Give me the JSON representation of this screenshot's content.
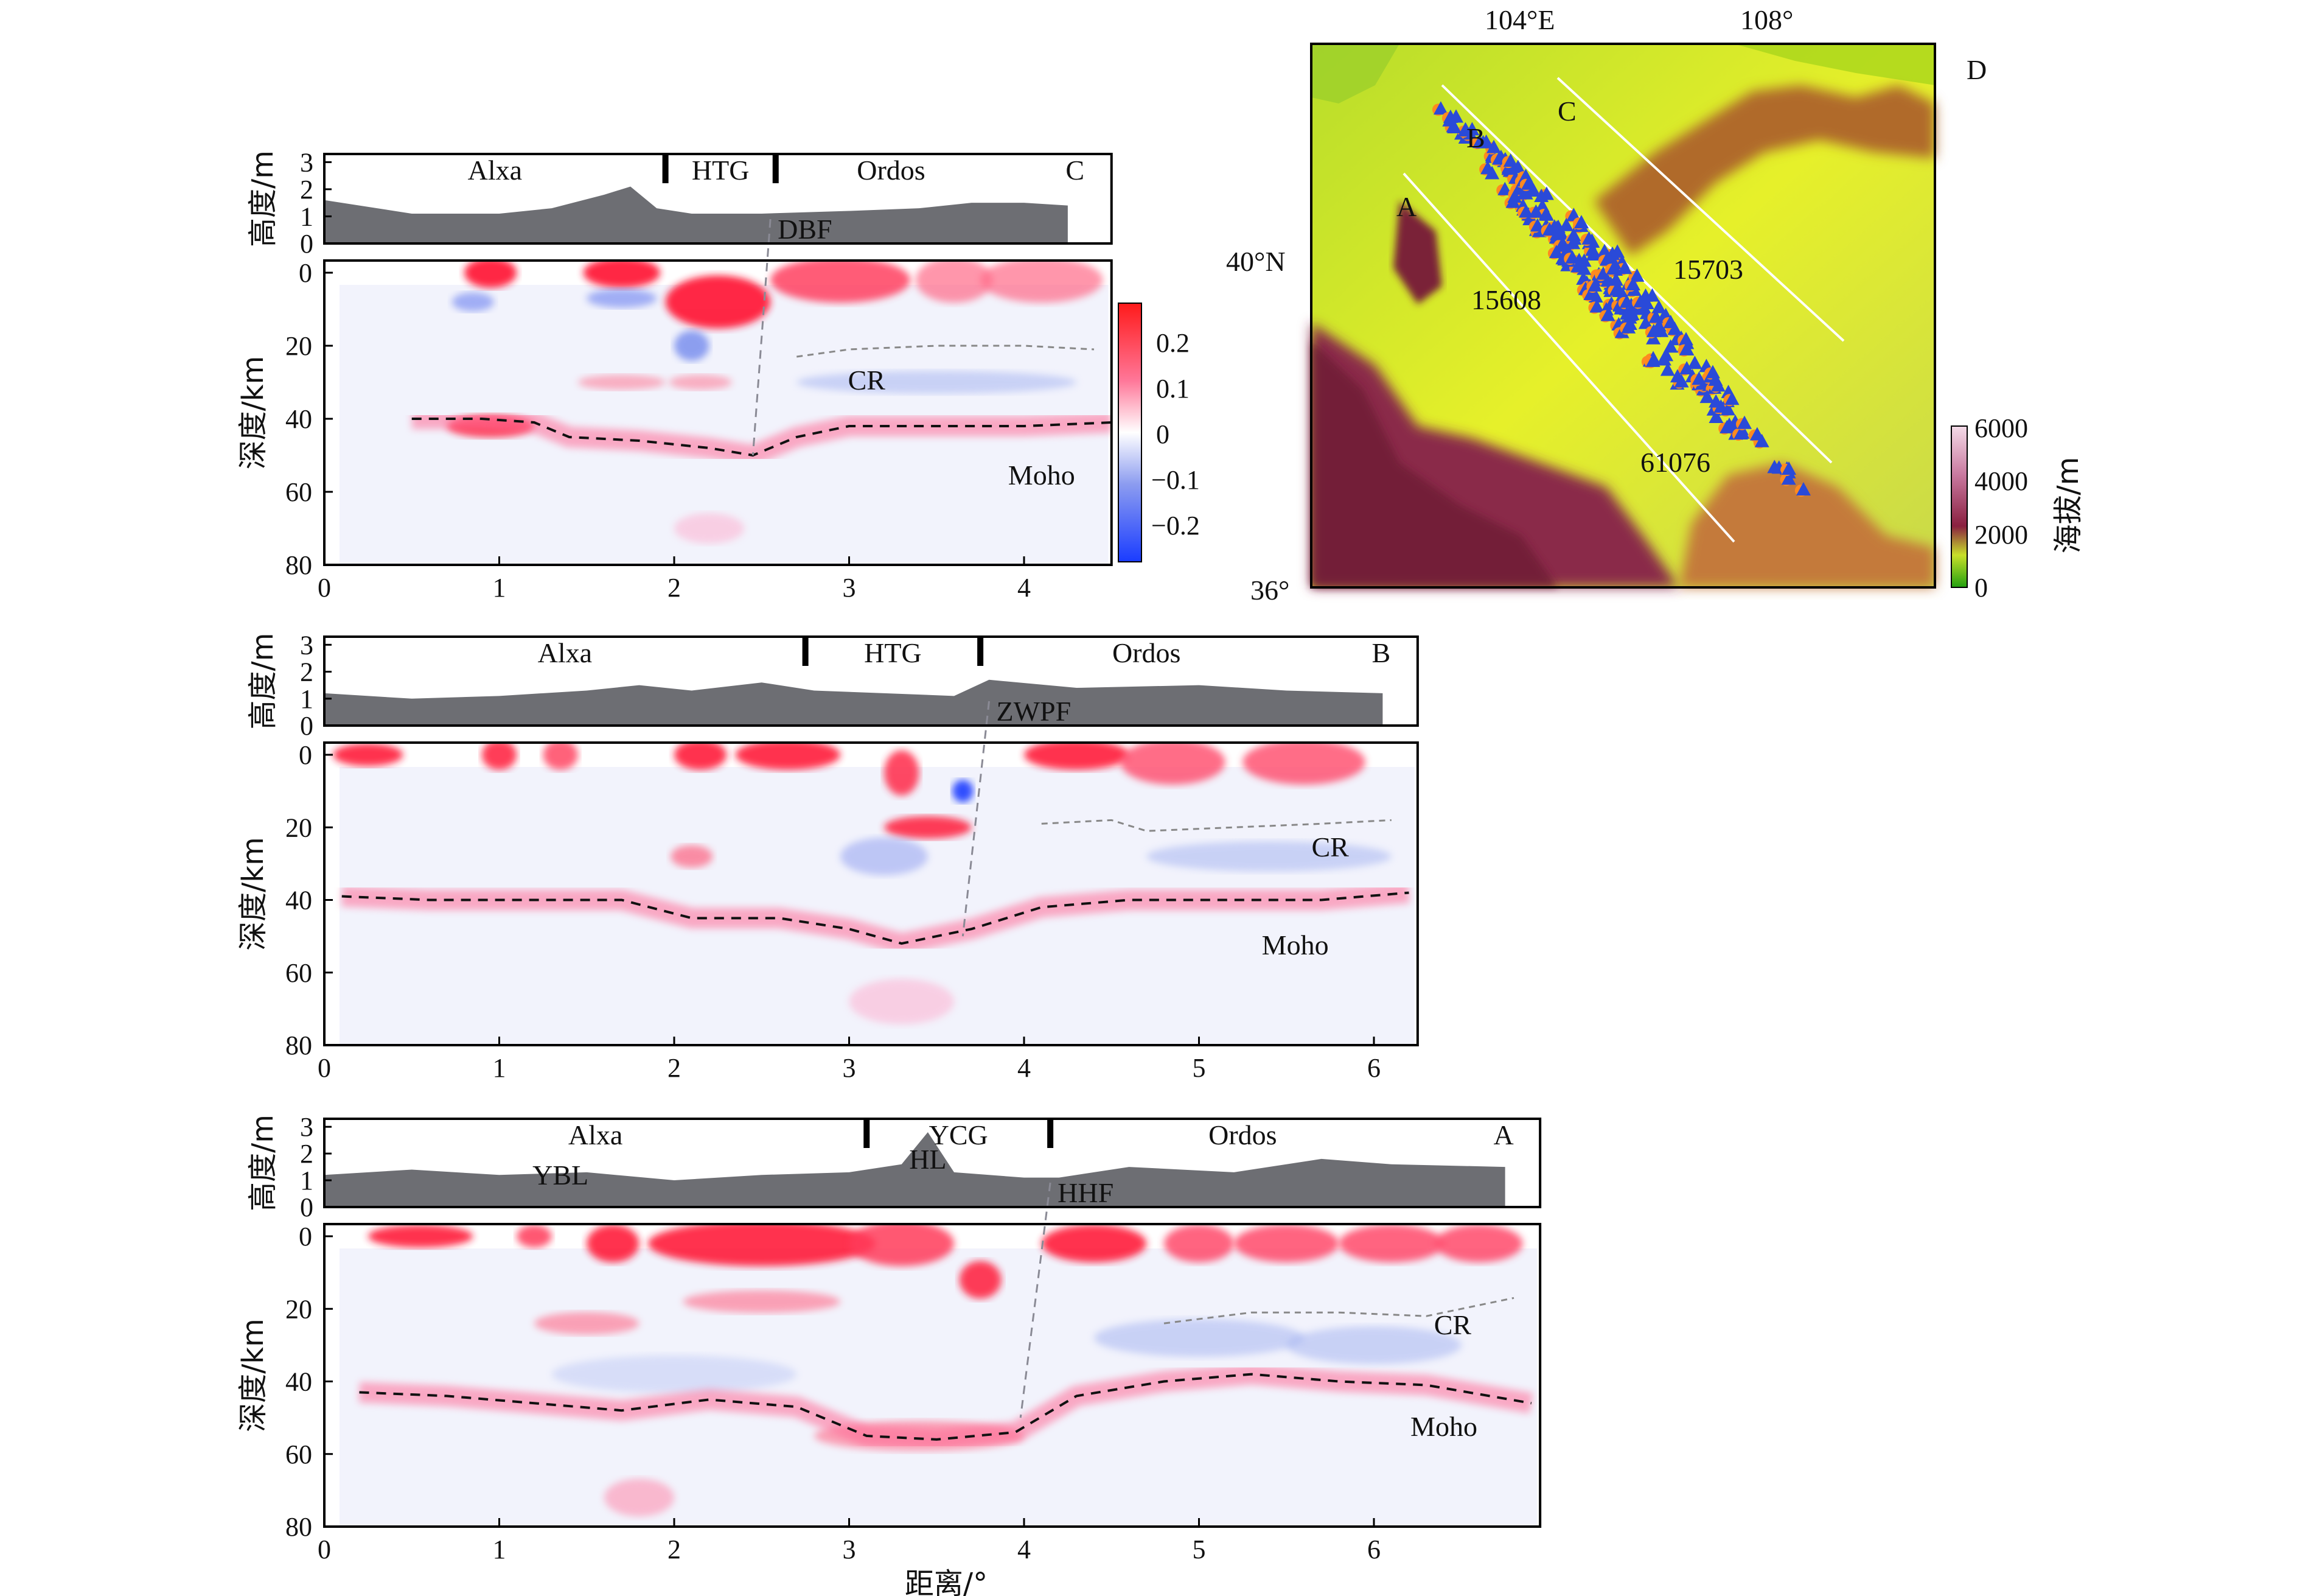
{
  "figure": {
    "colorbar": {
      "ticks": [
        "0.2",
        "0.1",
        "0",
        "−0.1",
        "−0.2"
      ],
      "colors": [
        "#ff1a1a",
        "#ff7799",
        "#ffffff",
        "#8c9cf0",
        "#1a3cff"
      ]
    },
    "map": {
      "panel_label": "D",
      "lon_labels": [
        "104°E",
        "108°"
      ],
      "lat_labels": [
        "40°N",
        "36°"
      ],
      "profile_labels": [
        "A",
        "B",
        "C"
      ],
      "station_labels": [
        "15703",
        "15608",
        "61076"
      ],
      "elev_bar": {
        "ticks": [
          "6000",
          "4000",
          "2000",
          "0"
        ],
        "title": "海拔/m",
        "colors": [
          "#f4dbe8",
          "#c97aa0",
          "#8a2040",
          "#c8e02a",
          "#22a010"
        ]
      }
    },
    "panels": [
      {
        "profile": "C",
        "max_distance": 4.5,
        "elev_ylabel": "高度/m",
        "elev_ticks": [
          "3",
          "2",
          "1",
          "0"
        ],
        "depth_ylabel": "深度/km",
        "depth_ticks": [
          "0",
          "20",
          "40",
          "60",
          "80"
        ],
        "x_ticks": [
          "0",
          "1",
          "2",
          "3",
          "4"
        ],
        "regions": [
          "Alxa",
          "HTG",
          "Ordos"
        ],
        "profile_label": "C",
        "boundaries_deg": [
          1.95,
          2.58
        ],
        "fault": "DBF",
        "fault_surface_deg": 2.55,
        "fault_depth_deg": 2.45,
        "labels": [
          "CR",
          "Moho"
        ],
        "topography_km": [
          [
            0,
            1.6
          ],
          [
            0.5,
            1.1
          ],
          [
            1,
            1.1
          ],
          [
            1.3,
            1.3
          ],
          [
            1.6,
            1.8
          ],
          [
            1.75,
            2.1
          ],
          [
            1.9,
            1.3
          ],
          [
            2.1,
            1.1
          ],
          [
            2.5,
            1.1
          ],
          [
            3,
            1.2
          ],
          [
            3.4,
            1.3
          ],
          [
            3.7,
            1.5
          ],
          [
            4.0,
            1.5
          ],
          [
            4.25,
            1.4
          ]
        ],
        "moho_km": [
          [
            0.5,
            40
          ],
          [
            0.9,
            40
          ],
          [
            1.2,
            41
          ],
          [
            1.4,
            45
          ],
          [
            1.8,
            46
          ],
          [
            2.2,
            48
          ],
          [
            2.45,
            50
          ],
          [
            2.7,
            45
          ],
          [
            3.0,
            42
          ],
          [
            3.5,
            42
          ],
          [
            4.0,
            42
          ],
          [
            4.5,
            41
          ]
        ],
        "cr_km": [
          [
            2.7,
            23
          ],
          [
            3.0,
            21
          ],
          [
            3.5,
            20
          ],
          [
            4.0,
            20
          ],
          [
            4.4,
            21
          ]
        ]
      },
      {
        "profile": "B",
        "max_distance": 6.25,
        "elev_ylabel": "高度/m",
        "elev_ticks": [
          "3",
          "2",
          "1",
          "0"
        ],
        "depth_ylabel": "深度/km",
        "depth_ticks": [
          "0",
          "20",
          "40",
          "60",
          "80"
        ],
        "x_ticks": [
          "0",
          "1",
          "2",
          "3",
          "4",
          "5",
          "6"
        ],
        "regions": [
          "Alxa",
          "HTG",
          "Ordos"
        ],
        "profile_label": "B",
        "boundaries_deg": [
          2.75,
          3.75
        ],
        "fault": "ZWPF",
        "fault_surface_deg": 3.8,
        "fault_depth_deg": 3.65,
        "labels": [
          "CR",
          "Moho"
        ],
        "topography_km": [
          [
            0,
            1.2
          ],
          [
            0.5,
            1.0
          ],
          [
            1,
            1.1
          ],
          [
            1.5,
            1.3
          ],
          [
            1.8,
            1.5
          ],
          [
            2.1,
            1.3
          ],
          [
            2.5,
            1.6
          ],
          [
            2.8,
            1.3
          ],
          [
            3.2,
            1.2
          ],
          [
            3.6,
            1.1
          ],
          [
            3.8,
            1.7
          ],
          [
            4.3,
            1.4
          ],
          [
            5,
            1.5
          ],
          [
            5.5,
            1.3
          ],
          [
            6.05,
            1.2
          ]
        ],
        "moho_km": [
          [
            0.1,
            39
          ],
          [
            0.6,
            40
          ],
          [
            1.2,
            40
          ],
          [
            1.7,
            40
          ],
          [
            2.1,
            45
          ],
          [
            2.6,
            45
          ],
          [
            3.0,
            48
          ],
          [
            3.3,
            52
          ],
          [
            3.7,
            48
          ],
          [
            4.1,
            42
          ],
          [
            4.6,
            40
          ],
          [
            5.2,
            40
          ],
          [
            5.7,
            40
          ],
          [
            6.2,
            38
          ]
        ],
        "cr_km": [
          [
            4.1,
            19
          ],
          [
            4.5,
            18
          ],
          [
            4.7,
            21
          ],
          [
            5.2,
            20
          ],
          [
            5.7,
            19
          ],
          [
            6.1,
            18
          ]
        ]
      },
      {
        "profile": "A",
        "max_distance": 6.95,
        "elev_ylabel": "高度/m",
        "elev_ticks": [
          "3",
          "2",
          "1",
          "0"
        ],
        "depth_ylabel": "深度/km",
        "depth_ticks": [
          "0",
          "20",
          "40",
          "60",
          "80"
        ],
        "x_ticks": [
          "0",
          "1",
          "2",
          "3",
          "4",
          "5",
          "6"
        ],
        "xlabel": "距离/°",
        "regions": [
          "Alxa",
          "YCG",
          "Ordos"
        ],
        "profile_label": "A",
        "sub_labels": [
          "YBL",
          "HL"
        ],
        "boundaries_deg": [
          3.1,
          4.15
        ],
        "fault": "HHF",
        "fault_surface_deg": 4.15,
        "fault_depth_deg": 3.98,
        "labels": [
          "CR",
          "Moho"
        ],
        "topography_km": [
          [
            0,
            1.2
          ],
          [
            0.5,
            1.4
          ],
          [
            1,
            1.2
          ],
          [
            1.5,
            1.3
          ],
          [
            2,
            1.0
          ],
          [
            2.5,
            1.2
          ],
          [
            3,
            1.3
          ],
          [
            3.3,
            1.6
          ],
          [
            3.45,
            2.8
          ],
          [
            3.6,
            1.3
          ],
          [
            4.0,
            1.1
          ],
          [
            4.2,
            1.1
          ],
          [
            4.6,
            1.5
          ],
          [
            5.2,
            1.3
          ],
          [
            5.7,
            1.8
          ],
          [
            6.1,
            1.6
          ],
          [
            6.75,
            1.5
          ]
        ],
        "moho_km": [
          [
            0.2,
            43
          ],
          [
            0.7,
            44
          ],
          [
            1.2,
            46
          ],
          [
            1.7,
            48
          ],
          [
            2.2,
            45
          ],
          [
            2.7,
            47
          ],
          [
            3.1,
            55
          ],
          [
            3.5,
            56
          ],
          [
            3.95,
            54
          ],
          [
            4.3,
            44
          ],
          [
            4.8,
            40
          ],
          [
            5.3,
            38
          ],
          [
            5.8,
            40
          ],
          [
            6.3,
            41
          ],
          [
            6.9,
            46
          ]
        ],
        "cr_km": [
          [
            4.8,
            24
          ],
          [
            5.3,
            21
          ],
          [
            5.8,
            21
          ],
          [
            6.3,
            22
          ],
          [
            6.8,
            17
          ]
        ]
      }
    ]
  }
}
